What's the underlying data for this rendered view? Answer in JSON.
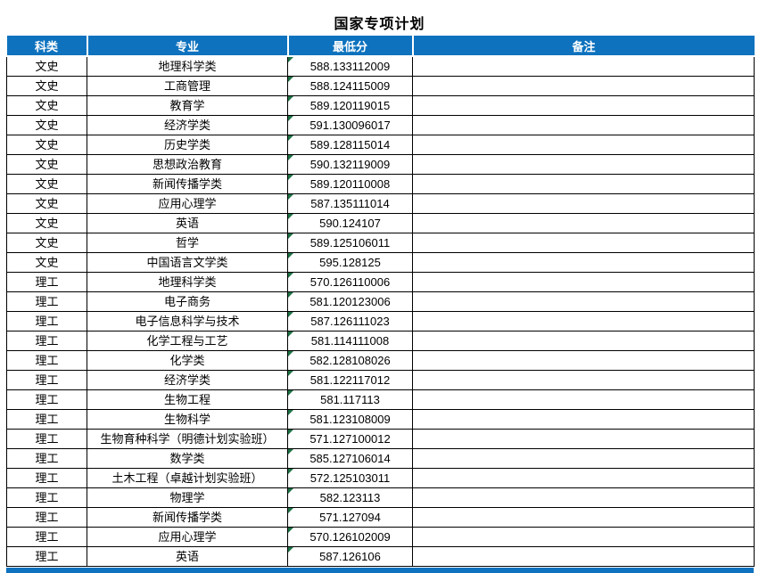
{
  "title": "国家专项计划",
  "colors": {
    "header_bg": "#0e72be",
    "header_fg": "#ffffff",
    "border": "#000000",
    "error_indicator": "#1f7246"
  },
  "table": {
    "headers": [
      "科类",
      "专业",
      "最低分",
      "备注"
    ],
    "rows": [
      {
        "category": "文史",
        "major": "地理科学类",
        "min_score": "588.133112009",
        "remark": ""
      },
      {
        "category": "文史",
        "major": "工商管理",
        "min_score": "588.124115009",
        "remark": ""
      },
      {
        "category": "文史",
        "major": "教育学",
        "min_score": "589.120119015",
        "remark": ""
      },
      {
        "category": "文史",
        "major": "经济学类",
        "min_score": "591.130096017",
        "remark": ""
      },
      {
        "category": "文史",
        "major": "历史学类",
        "min_score": "589.128115014",
        "remark": ""
      },
      {
        "category": "文史",
        "major": "思想政治教育",
        "min_score": "590.132119009",
        "remark": ""
      },
      {
        "category": "文史",
        "major": "新闻传播学类",
        "min_score": "589.120110008",
        "remark": ""
      },
      {
        "category": "文史",
        "major": "应用心理学",
        "min_score": "587.135111014",
        "remark": ""
      },
      {
        "category": "文史",
        "major": "英语",
        "min_score": "590.124107",
        "remark": ""
      },
      {
        "category": "文史",
        "major": "哲学",
        "min_score": "589.125106011",
        "remark": ""
      },
      {
        "category": "文史",
        "major": "中国语言文学类",
        "min_score": "595.128125",
        "remark": ""
      },
      {
        "category": "理工",
        "major": "地理科学类",
        "min_score": "570.126110006",
        "remark": ""
      },
      {
        "category": "理工",
        "major": "电子商务",
        "min_score": "581.120123006",
        "remark": ""
      },
      {
        "category": "理工",
        "major": "电子信息科学与技术",
        "min_score": "587.126111023",
        "remark": ""
      },
      {
        "category": "理工",
        "major": "化学工程与工艺",
        "min_score": "581.114111008",
        "remark": ""
      },
      {
        "category": "理工",
        "major": "化学类",
        "min_score": "582.128108026",
        "remark": ""
      },
      {
        "category": "理工",
        "major": "经济学类",
        "min_score": "581.122117012",
        "remark": ""
      },
      {
        "category": "理工",
        "major": "生物工程",
        "min_score": "581.117113",
        "remark": ""
      },
      {
        "category": "理工",
        "major": "生物科学",
        "min_score": "581.123108009",
        "remark": ""
      },
      {
        "category": "理工",
        "major": "生物育种科学（明德计划实验班）",
        "min_score": "571.127100012",
        "remark": ""
      },
      {
        "category": "理工",
        "major": "数学类",
        "min_score": "585.127106014",
        "remark": ""
      },
      {
        "category": "理工",
        "major": "土木工程（卓越计划实验班）",
        "min_score": "572.125103011",
        "remark": ""
      },
      {
        "category": "理工",
        "major": "物理学",
        "min_score": "582.123113",
        "remark": ""
      },
      {
        "category": "理工",
        "major": "新闻传播学类",
        "min_score": "571.127094",
        "remark": ""
      },
      {
        "category": "理工",
        "major": "应用心理学",
        "min_score": "570.126102009",
        "remark": ""
      },
      {
        "category": "理工",
        "major": "英语",
        "min_score": "587.126106",
        "remark": ""
      }
    ]
  }
}
